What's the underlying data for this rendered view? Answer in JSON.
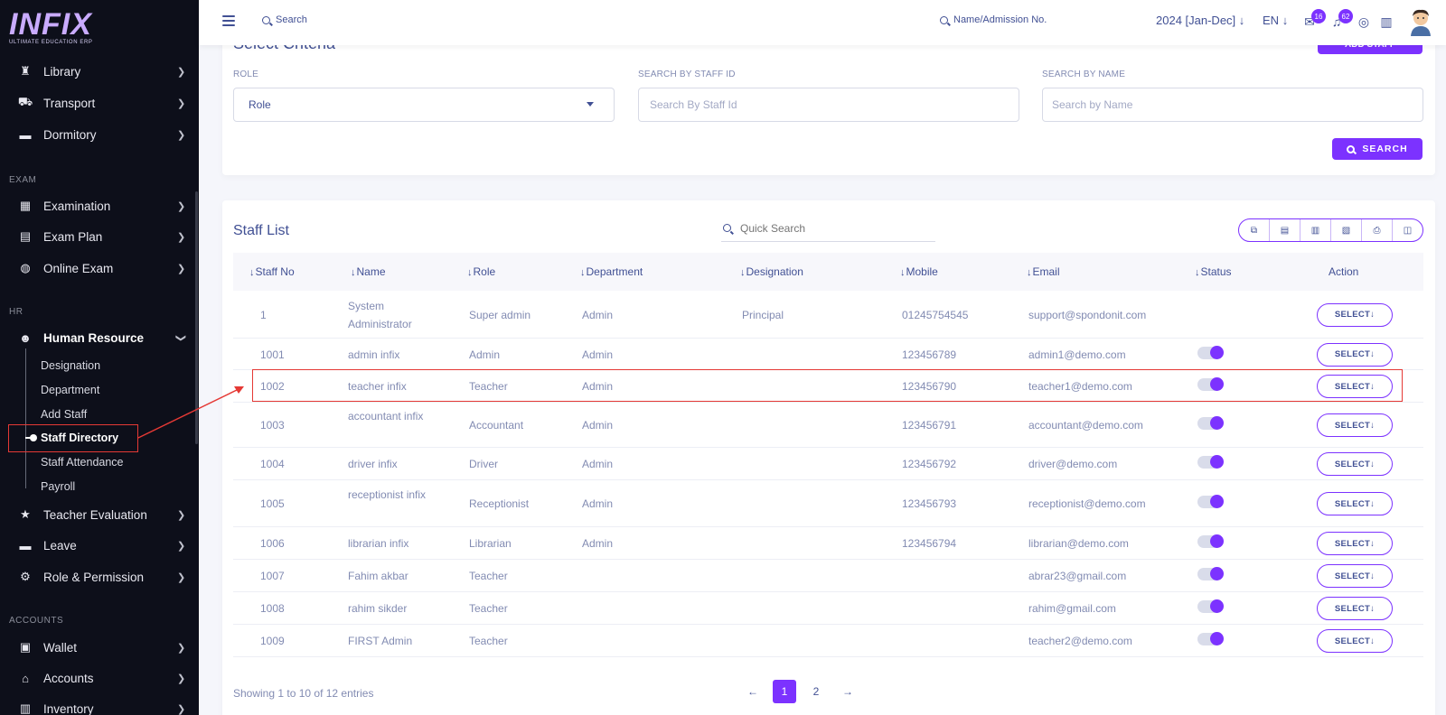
{
  "brand": {
    "logo": "INFIX",
    "tagline": "ULTIMATE EDUCATION ERP"
  },
  "sidebar": {
    "items_top": [
      {
        "label": "Library",
        "icon": "library-icon"
      },
      {
        "label": "Transport",
        "icon": "bus-icon"
      },
      {
        "label": "Dormitory",
        "icon": "bed-icon"
      }
    ],
    "section_exam": "EXAM",
    "items_exam": [
      {
        "label": "Examination"
      },
      {
        "label": "Exam Plan"
      },
      {
        "label": "Online Exam"
      }
    ],
    "section_hr": "HR",
    "hr_label": "Human Resource",
    "hr_sub": [
      "Designation",
      "Department",
      "Add Staff",
      "Staff Directory",
      "Staff Attendance",
      "Payroll"
    ],
    "items_after": [
      {
        "label": "Teacher Evaluation"
      },
      {
        "label": "Leave"
      },
      {
        "label": "Role & Permission"
      }
    ],
    "section_accounts": "ACCOUNTS",
    "items_accounts": [
      {
        "label": "Wallet"
      },
      {
        "label": "Accounts"
      },
      {
        "label": "Inventory"
      }
    ]
  },
  "topbar": {
    "search_label": "Search",
    "admission_search": "Name/Admission No.",
    "year": "2024 [Jan-Dec]",
    "lang": "EN",
    "messages_badge": "16",
    "notifications_badge": "62"
  },
  "criteria": {
    "title": "Select Criteria",
    "add_button": "ADD STAFF",
    "role_label": "ROLE",
    "role_value": "Role",
    "staff_id_label": "SEARCH BY STAFF ID",
    "staff_id_placeholder": "Search By Staff Id",
    "name_label": "SEARCH BY NAME",
    "name_placeholder": "Search by Name",
    "search_button": "SEARCH"
  },
  "staff_list": {
    "title": "Staff List",
    "quick_search_placeholder": "Quick Search",
    "columns": [
      "Staff No",
      "Name",
      "Role",
      "Department",
      "Designation",
      "Mobile",
      "Email",
      "Status",
      "Action"
    ],
    "select_label": "SELECT",
    "rows": [
      {
        "no": "1",
        "name": "System Administrator",
        "role": "Super admin",
        "dept": "Admin",
        "designation": "Principal",
        "mobile": "01245754545",
        "email": "support@spondonit.com",
        "toggle": false
      },
      {
        "no": "1001",
        "name": "admin infix",
        "role": "Admin",
        "dept": "Admin",
        "designation": "",
        "mobile": "123456789",
        "email": "admin1@demo.com",
        "toggle": true
      },
      {
        "no": "1002",
        "name": "teacher infix",
        "role": "Teacher",
        "dept": "Admin",
        "designation": "",
        "mobile": "123456790",
        "email": "teacher1@demo.com",
        "toggle": true
      },
      {
        "no": "1003",
        "name": "accountant infix",
        "role": "Accountant",
        "dept": "Admin",
        "designation": "",
        "mobile": "123456791",
        "email": "accountant@demo.com",
        "toggle": true
      },
      {
        "no": "1004",
        "name": "driver infix",
        "role": "Driver",
        "dept": "Admin",
        "designation": "",
        "mobile": "123456792",
        "email": "driver@demo.com",
        "toggle": true
      },
      {
        "no": "1005",
        "name": "receptionist infix",
        "role": "Receptionist",
        "dept": "Admin",
        "designation": "",
        "mobile": "123456793",
        "email": "receptionist@demo.com",
        "toggle": true
      },
      {
        "no": "1006",
        "name": "librarian infix",
        "role": "Librarian",
        "dept": "Admin",
        "designation": "",
        "mobile": "123456794",
        "email": "librarian@demo.com",
        "toggle": true
      },
      {
        "no": "1007",
        "name": "Fahim akbar",
        "role": "Teacher",
        "dept": "",
        "designation": "",
        "mobile": "",
        "email": "abrar23@gmail.com",
        "toggle": true
      },
      {
        "no": "1008",
        "name": "rahim sikder",
        "role": "Teacher",
        "dept": "",
        "designation": "",
        "mobile": "",
        "email": "rahim@gmail.com",
        "toggle": true
      },
      {
        "no": "1009",
        "name": "FIRST Admin",
        "role": "Teacher",
        "dept": "",
        "designation": "",
        "mobile": "",
        "email": "teacher2@demo.com",
        "toggle": true
      }
    ],
    "info": "Showing 1 to 10 of 12 entries",
    "pages": [
      "1",
      "2"
    ],
    "prev": "←",
    "next": "→"
  },
  "colors": {
    "accent": "#7c32ff",
    "text": "#415094",
    "muted": "#828bb2",
    "sidebar_bg": "#0d0f1a",
    "annotation": "#e53935"
  }
}
